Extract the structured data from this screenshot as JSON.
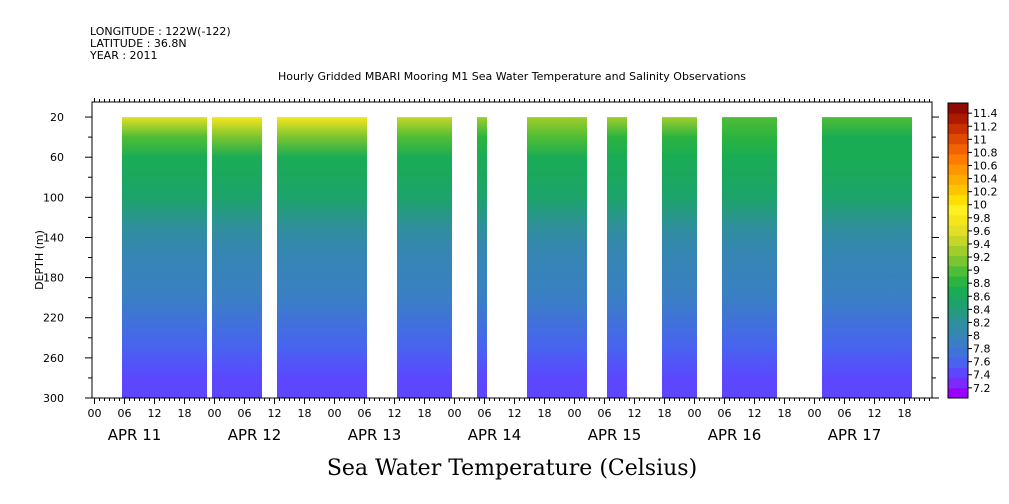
{
  "header": {
    "longitude": "LONGITUDE : 122W(-122)",
    "latitude": "LATITUDE : 36.8N",
    "year": "YEAR : 2011",
    "title": "Hourly Gridded MBARI Mooring M1 Sea Water Temperature and Salinity Observations"
  },
  "footer": {
    "variable_title": "Sea Water Temperature (Celsius)"
  },
  "colors": {
    "frame": "#000000",
    "background": "#ffffff",
    "palette": [
      "#9900ff",
      "#7a29ff",
      "#5c47ff",
      "#4863f0",
      "#3f73d9",
      "#3a7fc4",
      "#3587b0",
      "#2f8f9c",
      "#249a80",
      "#1da36a",
      "#1aac55",
      "#2bb43f",
      "#4fbd35",
      "#7ac530",
      "#a0cd2b",
      "#c6d628",
      "#e4df24",
      "#f5e61c",
      "#fff022",
      "#ffe000",
      "#ffc600",
      "#ffae00",
      "#ff9500",
      "#ff7c00",
      "#f26200",
      "#e04a00",
      "#c93000",
      "#ad1a00",
      "#8f0a00"
    ]
  },
  "chart_data": {
    "type": "heatmap",
    "title": "Hourly Gridded MBARI Mooring M1 Sea Water Temperature and Salinity Observations",
    "xlabel": "",
    "ylabel": "DEPTH (m)",
    "x_unit": "hour of APR 11 2011",
    "xlim": [
      -0.5,
      167.5
    ],
    "ylim": [
      300,
      5
    ],
    "y_ticks": [
      20,
      60,
      100,
      140,
      180,
      220,
      260,
      300
    ],
    "x_tick_hours": [
      "00",
      "06",
      "12",
      "18",
      "00",
      "06",
      "12",
      "18",
      "00",
      "06",
      "12",
      "18",
      "00",
      "06",
      "12",
      "18",
      "00",
      "06",
      "12",
      "18",
      "00",
      "06",
      "12",
      "18",
      "00",
      "06",
      "12",
      "18"
    ],
    "day_labels": [
      "APR 11",
      "APR 12",
      "APR 13",
      "APR 14",
      "APR 15",
      "APR 16",
      "APR 17"
    ],
    "colorbar": {
      "levels": [
        7.2,
        7.4,
        7.6,
        7.8,
        8,
        8.2,
        8.4,
        8.6,
        8.8,
        9,
        9.2,
        9.4,
        9.6,
        9.8,
        10,
        10.2,
        10.4,
        10.6,
        10.8,
        11,
        11.2,
        11.4
      ],
      "labels": [
        "11.4",
        "11.2",
        "11",
        "10.8",
        "10.6",
        "10.4",
        "10.2",
        "10",
        "9.8",
        "9.6",
        "9.4",
        "9.2",
        "9",
        "8.8",
        "8.6",
        "8.4",
        "8.2",
        "8",
        "7.8",
        "7.6",
        "7.4",
        "7.2"
      ]
    },
    "segments": [
      {
        "start": 6,
        "end": 22,
        "surface": 10.3
      },
      {
        "start": 24,
        "end": 33,
        "surface": 10.5
      },
      {
        "start": 37,
        "end": 54,
        "surface": 10.5
      },
      {
        "start": 61,
        "end": 71,
        "surface": 10.2
      },
      {
        "start": 77,
        "end": 78,
        "surface": 9.8
      },
      {
        "start": 87,
        "end": 98,
        "surface": 10.0
      },
      {
        "start": 103,
        "end": 106,
        "surface": 9.9
      },
      {
        "start": 114,
        "end": 120,
        "surface": 9.8
      },
      {
        "start": 126,
        "end": 136,
        "surface": 9.6
      },
      {
        "start": 146,
        "end": 163,
        "surface": 9.4
      }
    ],
    "depth_profile": [
      {
        "depth": 20,
        "temp": 10.3
      },
      {
        "depth": 40,
        "temp": 9.6
      },
      {
        "depth": 60,
        "temp": 9.2
      },
      {
        "depth": 100,
        "temp": 8.95
      },
      {
        "depth": 130,
        "temp": 8.6
      },
      {
        "depth": 150,
        "temp": 8.3
      },
      {
        "depth": 200,
        "temp": 8.05
      },
      {
        "depth": 250,
        "temp": 7.8
      },
      {
        "depth": 280,
        "temp": 7.6
      },
      {
        "depth": 300,
        "temp": 7.45
      }
    ]
  }
}
